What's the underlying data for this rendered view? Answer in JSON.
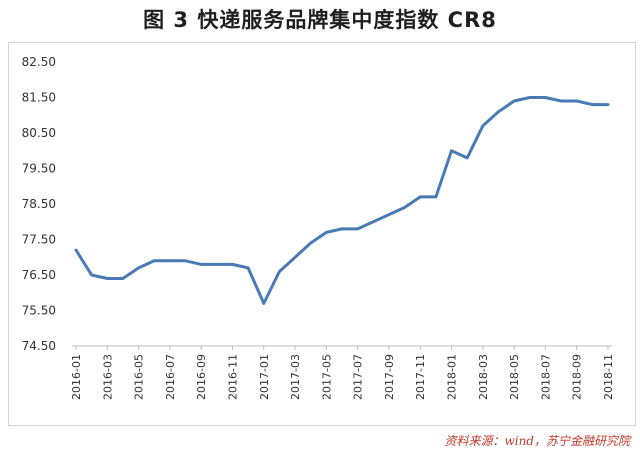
{
  "title": "图 3  快递服务品牌集中度指数 CR8",
  "source": "资料来源：wind，苏宁金融研究院",
  "chart_data": {
    "type": "line",
    "title": "图 3  快递服务品牌集中度指数 CR8",
    "xlabel": "",
    "ylabel": "",
    "ylim": [
      74.5,
      82.5
    ],
    "y_ticks": [
      "82.50",
      "81.50",
      "80.50",
      "79.50",
      "78.50",
      "77.50",
      "76.50",
      "75.50",
      "74.50"
    ],
    "y_tick_values": [
      82.5,
      81.5,
      80.5,
      79.5,
      78.5,
      77.5,
      76.5,
      75.5,
      74.5
    ],
    "x_tick_labels": [
      "2016-01",
      "2016-03",
      "2016-05",
      "2016-07",
      "2016-09",
      "2016-11",
      "2017-01",
      "2017-03",
      "2017-05",
      "2017-07",
      "2017-09",
      "2017-11",
      "2018-01",
      "2018-03",
      "2018-05",
      "2018-07",
      "2018-09",
      "2018-11"
    ],
    "x": [
      "2016-01",
      "2016-02",
      "2016-03",
      "2016-04",
      "2016-05",
      "2016-06",
      "2016-07",
      "2016-08",
      "2016-09",
      "2016-10",
      "2016-11",
      "2016-12",
      "2017-01",
      "2017-02",
      "2017-03",
      "2017-04",
      "2017-05",
      "2017-06",
      "2017-07",
      "2017-08",
      "2017-09",
      "2017-10",
      "2017-11",
      "2017-12",
      "2018-01",
      "2018-02",
      "2018-03",
      "2018-04",
      "2018-05",
      "2018-06",
      "2018-07",
      "2018-08",
      "2018-09",
      "2018-10",
      "2018-11"
    ],
    "series": [
      {
        "values": [
          77.2,
          76.5,
          76.4,
          76.4,
          76.7,
          76.9,
          76.9,
          76.9,
          76.8,
          76.8,
          76.8,
          76.7,
          75.7,
          76.6,
          77.0,
          77.4,
          77.7,
          77.8,
          77.8,
          78.0,
          78.2,
          78.4,
          78.7,
          78.7,
          80.0,
          79.8,
          80.7,
          81.1,
          81.4,
          81.5,
          81.5,
          81.4,
          81.4,
          81.3,
          81.3
        ],
        "color": "#4a7ab5"
      }
    ],
    "grid": false,
    "legend": "none"
  }
}
